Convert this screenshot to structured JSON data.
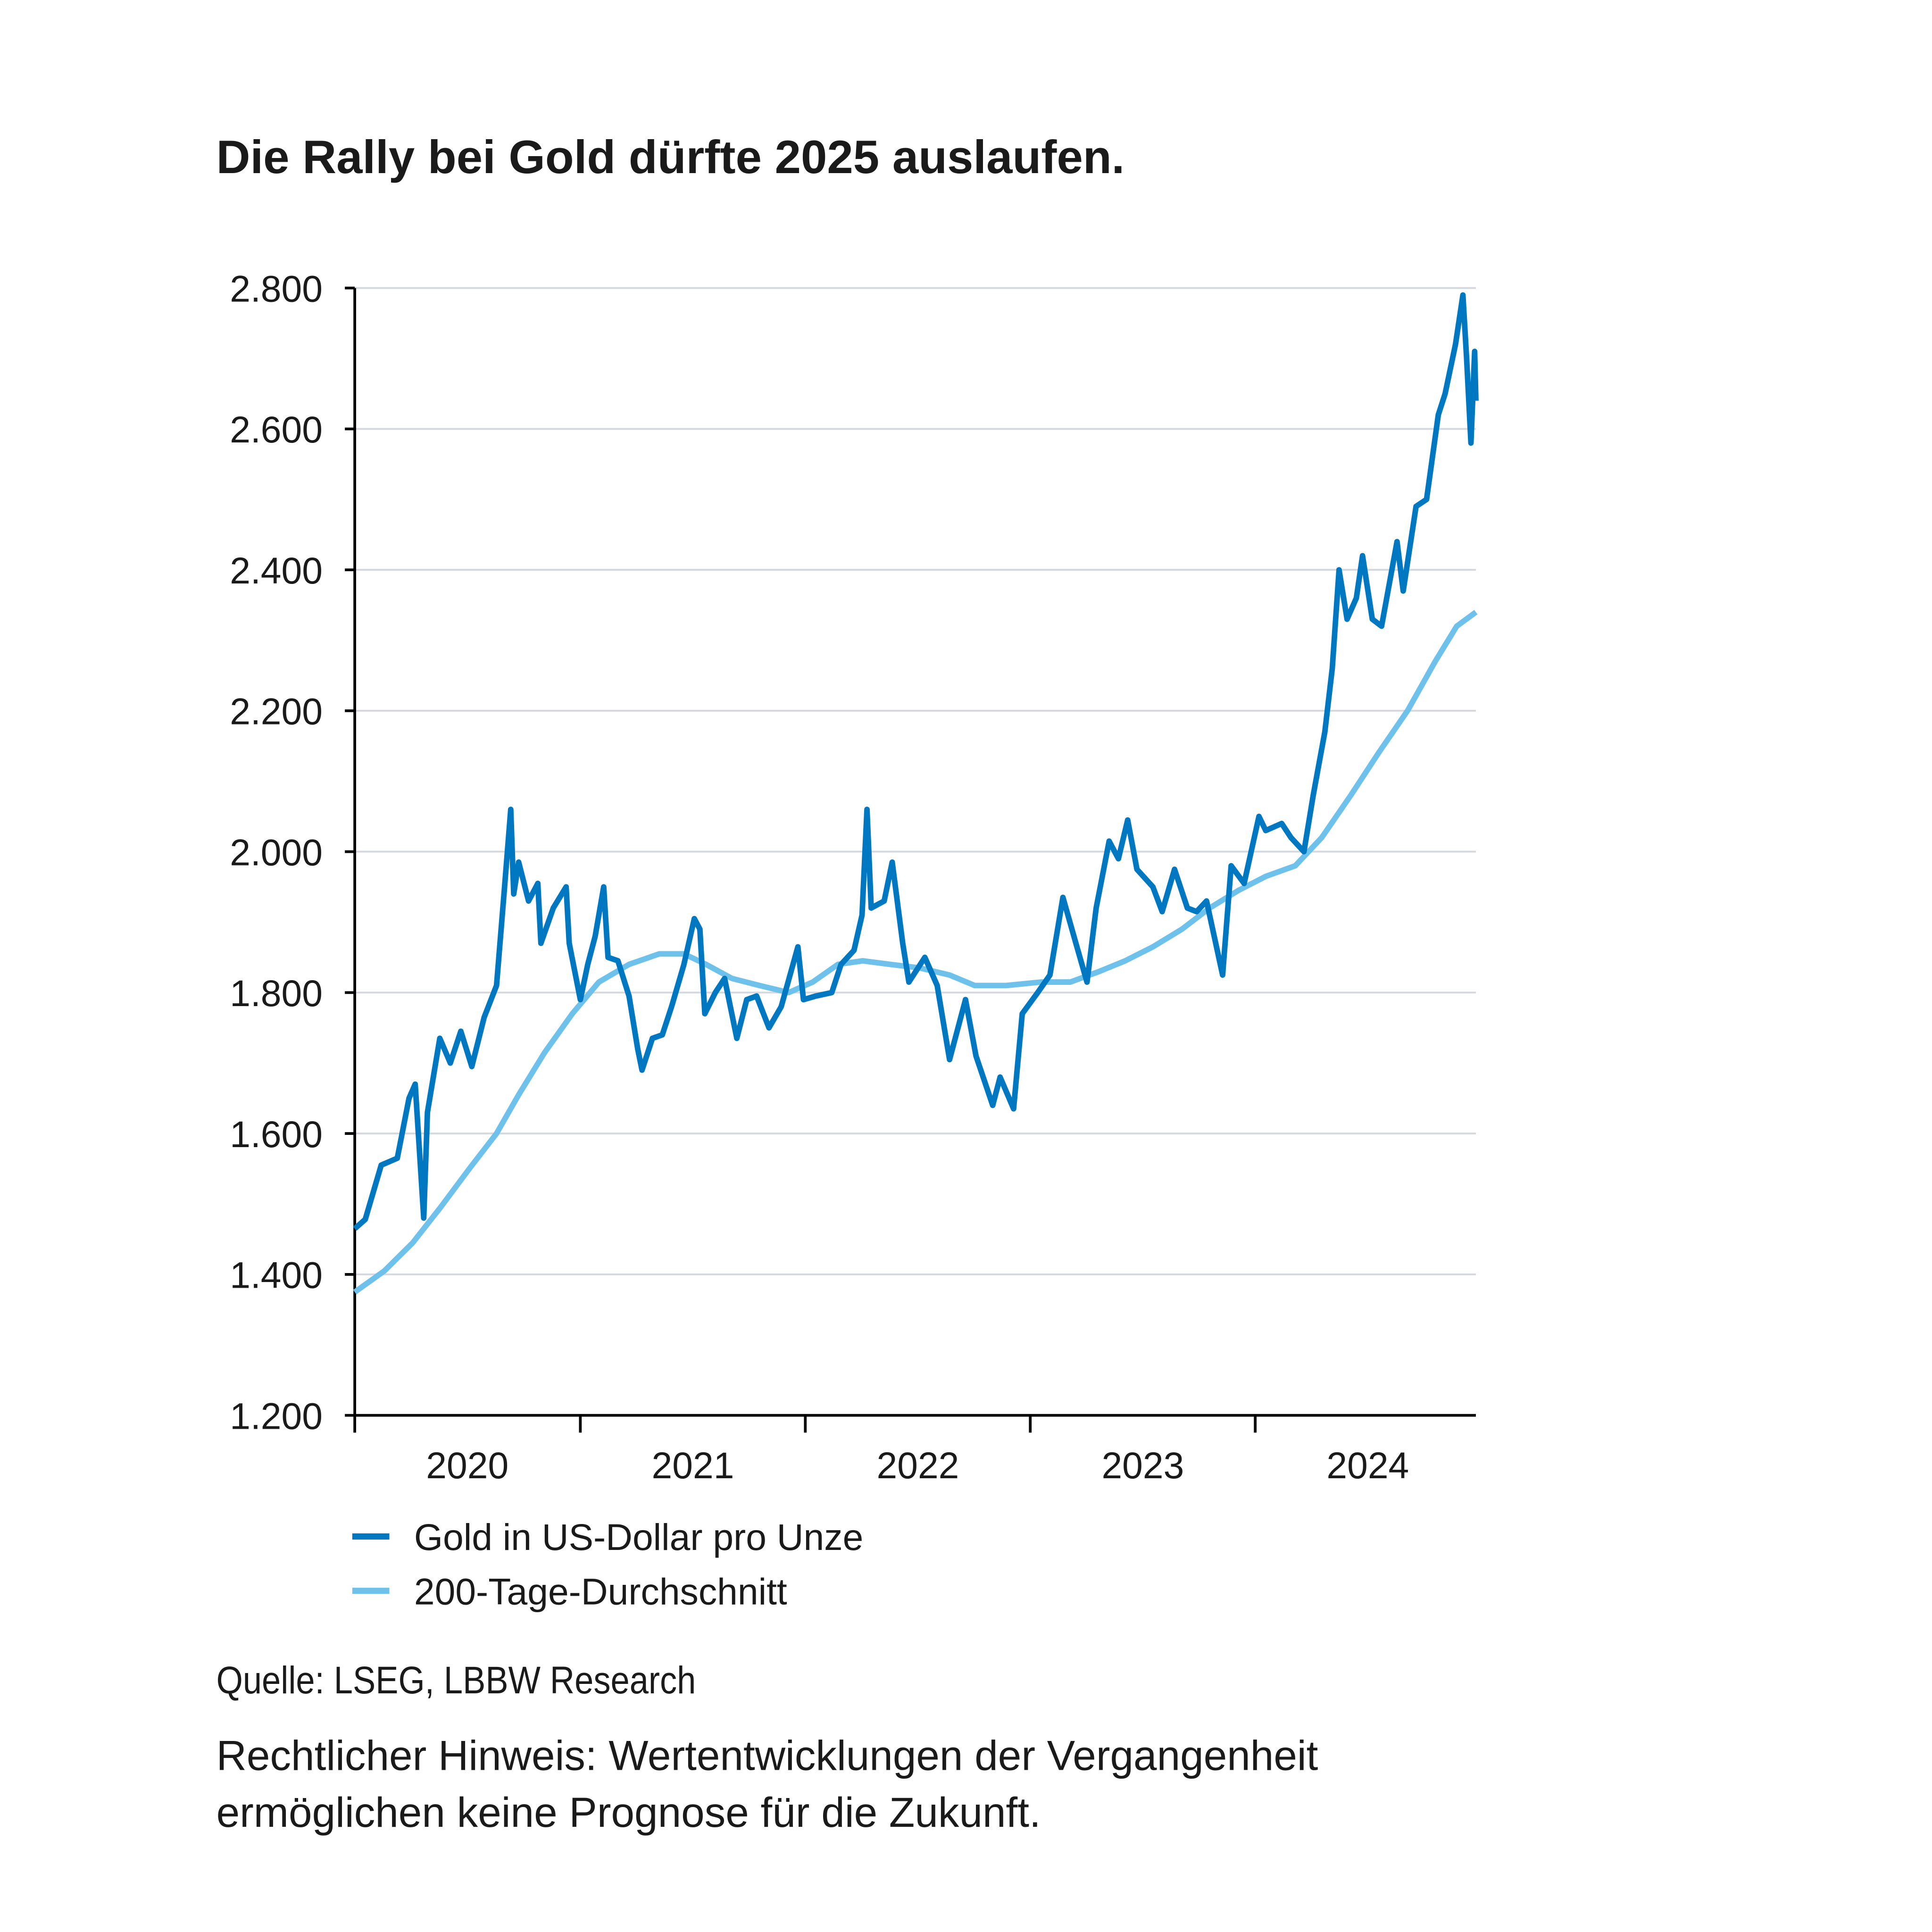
{
  "title": "Die Rally bei Gold dürfte 2025 auslaufen.",
  "source": "Quelle: LSEG, LBBW Research",
  "disclaimer": {
    "line1": "Rechtlicher Hinweis: Wertentwicklungen der Vergangenheit",
    "line2": "ermöglichen keine Prognose für die Zukunft."
  },
  "chart_data": {
    "type": "line",
    "title": "Die Rally bei Gold dürfte 2025 auslaufen.",
    "xlabel": "",
    "ylabel": "",
    "xlim": [
      "2019-11-28",
      "2024-11-20"
    ],
    "ylim": [
      1200,
      2800
    ],
    "yticks": [
      1200,
      1400,
      1600,
      1800,
      2000,
      2200,
      2400,
      2600,
      2800
    ],
    "ytick_labels": [
      "1.200",
      "1.400",
      "1.600",
      "1.800",
      "2.000",
      "2.200",
      "2.400",
      "2.600",
      "2.800"
    ],
    "xtick_dates": [
      "2019-11-28",
      "2020-11-28",
      "2021-11-28",
      "2022-11-28",
      "2023-11-28"
    ],
    "xtick_labels": [
      "2020",
      "2021",
      "2022",
      "2023",
      "2024"
    ],
    "grid": "horizontal",
    "legend_position": "bottom-left",
    "series": [
      {
        "name": "Gold in US-Dollar pro Unze",
        "color": "#0078c1",
        "points": [
          [
            "2019-11-28",
            1465
          ],
          [
            "2019-12-15",
            1478
          ],
          [
            "2020-01-10",
            1555
          ],
          [
            "2020-02-05",
            1565
          ],
          [
            "2020-02-24",
            1650
          ],
          [
            "2020-03-05",
            1670
          ],
          [
            "2020-03-19",
            1480
          ],
          [
            "2020-03-25",
            1630
          ],
          [
            "2020-04-14",
            1735
          ],
          [
            "2020-05-01",
            1700
          ],
          [
            "2020-05-18",
            1745
          ],
          [
            "2020-06-05",
            1695
          ],
          [
            "2020-06-25",
            1765
          ],
          [
            "2020-07-15",
            1810
          ],
          [
            "2020-07-28",
            1950
          ],
          [
            "2020-08-07",
            2060
          ],
          [
            "2020-08-12",
            1940
          ],
          [
            "2020-08-20",
            1985
          ],
          [
            "2020-09-05",
            1930
          ],
          [
            "2020-09-20",
            1955
          ],
          [
            "2020-09-25",
            1870
          ],
          [
            "2020-10-15",
            1920
          ],
          [
            "2020-11-05",
            1950
          ],
          [
            "2020-11-10",
            1870
          ],
          [
            "2020-11-28",
            1790
          ],
          [
            "2020-12-10",
            1840
          ],
          [
            "2020-12-22",
            1880
          ],
          [
            "2021-01-05",
            1950
          ],
          [
            "2021-01-12",
            1850
          ],
          [
            "2021-01-28",
            1845
          ],
          [
            "2021-02-15",
            1795
          ],
          [
            "2021-03-01",
            1720
          ],
          [
            "2021-03-08",
            1690
          ],
          [
            "2021-03-25",
            1735
          ],
          [
            "2021-04-10",
            1740
          ],
          [
            "2021-04-25",
            1780
          ],
          [
            "2021-05-15",
            1840
          ],
          [
            "2021-06-01",
            1905
          ],
          [
            "2021-06-10",
            1890
          ],
          [
            "2021-06-18",
            1770
          ],
          [
            "2021-07-05",
            1800
          ],
          [
            "2021-07-20",
            1820
          ],
          [
            "2021-08-09",
            1735
          ],
          [
            "2021-08-25",
            1790
          ],
          [
            "2021-09-10",
            1795
          ],
          [
            "2021-09-30",
            1750
          ],
          [
            "2021-10-20",
            1780
          ],
          [
            "2021-11-16",
            1865
          ],
          [
            "2021-11-25",
            1790
          ],
          [
            "2021-12-15",
            1795
          ],
          [
            "2022-01-10",
            1800
          ],
          [
            "2022-01-25",
            1840
          ],
          [
            "2022-02-15",
            1860
          ],
          [
            "2022-02-28",
            1910
          ],
          [
            "2022-03-08",
            2060
          ],
          [
            "2022-03-15",
            1920
          ],
          [
            "2022-04-05",
            1930
          ],
          [
            "2022-04-18",
            1985
          ],
          [
            "2022-05-05",
            1870
          ],
          [
            "2022-05-15",
            1815
          ],
          [
            "2022-06-10",
            1850
          ],
          [
            "2022-06-30",
            1810
          ],
          [
            "2022-07-20",
            1705
          ],
          [
            "2022-08-15",
            1790
          ],
          [
            "2022-09-01",
            1710
          ],
          [
            "2022-09-28",
            1640
          ],
          [
            "2022-10-10",
            1680
          ],
          [
            "2022-11-01",
            1635
          ],
          [
            "2022-11-15",
            1770
          ],
          [
            "2022-12-10",
            1800
          ],
          [
            "2022-12-30",
            1825
          ],
          [
            "2023-01-20",
            1935
          ],
          [
            "2023-02-10",
            1870
          ],
          [
            "2023-02-28",
            1815
          ],
          [
            "2023-03-15",
            1920
          ],
          [
            "2023-04-05",
            2015
          ],
          [
            "2023-04-20",
            1990
          ],
          [
            "2023-05-05",
            2045
          ],
          [
            "2023-05-20",
            1975
          ],
          [
            "2023-06-15",
            1950
          ],
          [
            "2023-06-30",
            1915
          ],
          [
            "2023-07-20",
            1975
          ],
          [
            "2023-08-10",
            1920
          ],
          [
            "2023-08-25",
            1915
          ],
          [
            "2023-09-10",
            1930
          ],
          [
            "2023-10-06",
            1825
          ],
          [
            "2023-10-20",
            1980
          ],
          [
            "2023-11-10",
            1955
          ],
          [
            "2023-12-04",
            2050
          ],
          [
            "2023-12-15",
            2030
          ],
          [
            "2024-01-10",
            2040
          ],
          [
            "2024-01-25",
            2020
          ],
          [
            "2024-02-15",
            2000
          ],
          [
            "2024-03-01",
            2080
          ],
          [
            "2024-03-20",
            2170
          ],
          [
            "2024-04-01",
            2260
          ],
          [
            "2024-04-12",
            2400
          ],
          [
            "2024-04-25",
            2330
          ],
          [
            "2024-05-10",
            2360
          ],
          [
            "2024-05-20",
            2420
          ],
          [
            "2024-06-05",
            2330
          ],
          [
            "2024-06-20",
            2320
          ],
          [
            "2024-07-15",
            2440
          ],
          [
            "2024-07-25",
            2370
          ],
          [
            "2024-08-15",
            2490
          ],
          [
            "2024-09-01",
            2500
          ],
          [
            "2024-09-20",
            2620
          ],
          [
            "2024-10-01",
            2650
          ],
          [
            "2024-10-18",
            2720
          ],
          [
            "2024-10-30",
            2790
          ],
          [
            "2024-11-05",
            2700
          ],
          [
            "2024-11-12",
            2580
          ],
          [
            "2024-11-18",
            2710
          ],
          [
            "2024-11-20",
            2640
          ]
        ]
      },
      {
        "name": "200-Tage-Durchschnitt",
        "color": "#6ec1ea",
        "points": [
          [
            "2019-11-28",
            1375
          ],
          [
            "2020-01-15",
            1405
          ],
          [
            "2020-03-01",
            1445
          ],
          [
            "2020-04-15",
            1495
          ],
          [
            "2020-06-01",
            1550
          ],
          [
            "2020-07-15",
            1600
          ],
          [
            "2020-08-20",
            1655
          ],
          [
            "2020-10-01",
            1715
          ],
          [
            "2020-11-15",
            1770
          ],
          [
            "2020-12-28",
            1815
          ],
          [
            "2021-02-15",
            1840
          ],
          [
            "2021-04-05",
            1855
          ],
          [
            "2021-05-15",
            1855
          ],
          [
            "2021-06-20",
            1840
          ],
          [
            "2021-08-01",
            1820
          ],
          [
            "2021-09-15",
            1810
          ],
          [
            "2021-11-01",
            1800
          ],
          [
            "2021-12-10",
            1815
          ],
          [
            "2022-01-20",
            1840
          ],
          [
            "2022-03-01",
            1845
          ],
          [
            "2022-04-15",
            1840
          ],
          [
            "2022-06-01",
            1835
          ],
          [
            "2022-07-20",
            1825
          ],
          [
            "2022-08-30",
            1810
          ],
          [
            "2022-10-20",
            1810
          ],
          [
            "2022-12-15",
            1815
          ],
          [
            "2023-02-01",
            1815
          ],
          [
            "2023-03-20",
            1830
          ],
          [
            "2023-05-01",
            1845
          ],
          [
            "2023-06-15",
            1865
          ],
          [
            "2023-08-01",
            1890
          ],
          [
            "2023-09-15",
            1920
          ],
          [
            "2023-11-01",
            1945
          ],
          [
            "2023-12-15",
            1965
          ],
          [
            "2024-02-01",
            1980
          ],
          [
            "2024-03-15",
            2020
          ],
          [
            "2024-05-01",
            2080
          ],
          [
            "2024-06-15",
            2140
          ],
          [
            "2024-08-01",
            2200
          ],
          [
            "2024-09-15",
            2270
          ],
          [
            "2024-10-20",
            2320
          ],
          [
            "2024-11-20",
            2340
          ]
        ]
      }
    ]
  }
}
